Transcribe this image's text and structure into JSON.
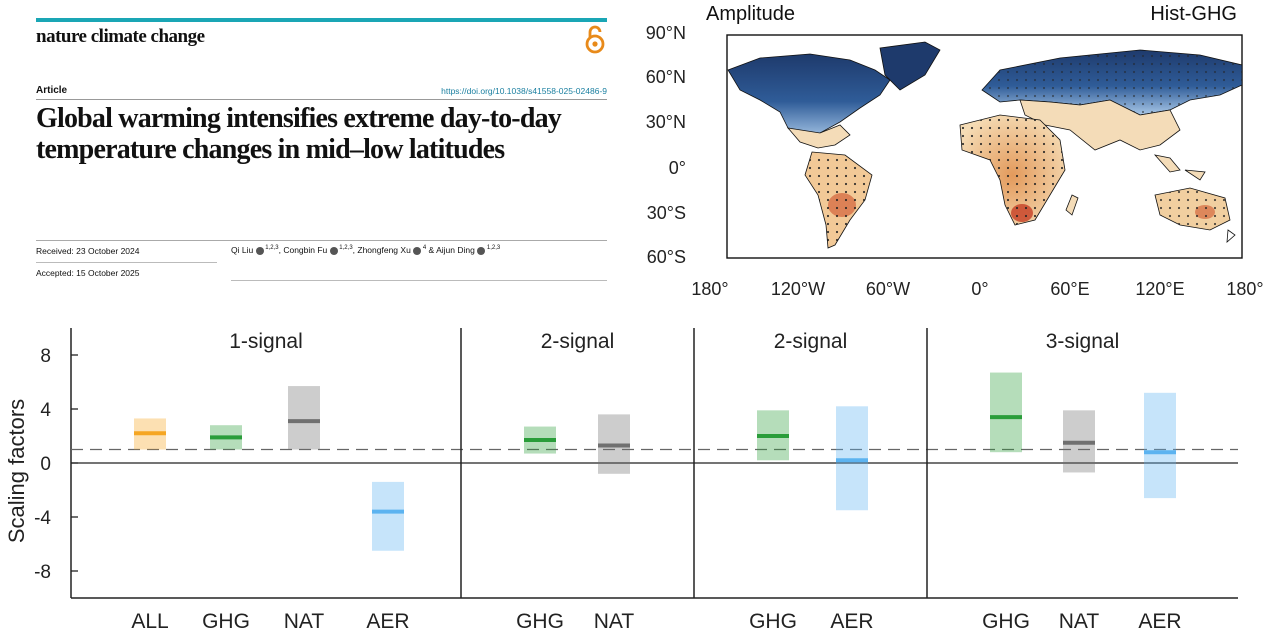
{
  "article": {
    "journal": "nature climate change",
    "type": "Article",
    "doi": "https://doi.org/10.1038/s41558-025-02486-9",
    "title": "Global warming intensifies extreme day-to-day temperature changes in mid–low latitudes",
    "received": "Received: 23 October 2024",
    "accepted": "Accepted: 15 October 2025",
    "authors": [
      {
        "name": "Qi Liu",
        "aff": "1,2,3",
        "sep": ", "
      },
      {
        "name": "Congbin Fu",
        "aff": "1,2,3",
        "sep": ", "
      },
      {
        "name": "Zhongfeng Xu",
        "aff": "4",
        "sep": " & "
      },
      {
        "name": "Aijun Ding",
        "aff": "1,2,3",
        "sep": ""
      }
    ],
    "accent_color": "#1aa6b5",
    "oa_icon": "open-access-lock-icon",
    "oa_color": "#e88a1a"
  },
  "map": {
    "label_left": "Amplitude",
    "label_right": "Hist-GHG",
    "lat_ticks": [
      "90°N",
      "60°N",
      "30°N",
      "0°",
      "30°S",
      "60°S"
    ],
    "lon_ticks": [
      "180°",
      "120°W",
      "60°W",
      "0°",
      "60°E",
      "120°E",
      "180°"
    ],
    "colors": {
      "high_neg": "#1f3b6e",
      "mid_neg": "#7fa9d6",
      "low": "#f6e3c4",
      "pos": "#e8a56a",
      "high_pos": "#c8472c"
    }
  },
  "chart_data": {
    "type": "bar",
    "ylabel": "Scaling factors",
    "ylim": [
      -10,
      10
    ],
    "yticks": [
      8,
      4,
      0,
      -4,
      -8
    ],
    "ytick_labels": [
      "8",
      "4",
      "0",
      "-4",
      "-8"
    ],
    "reference_line": 1,
    "panels": [
      {
        "title": "1-signal",
        "bars": [
          {
            "label": "ALL",
            "best": 2.2,
            "low": 1.0,
            "high": 3.3,
            "color": "#f5a623"
          },
          {
            "label": "GHG",
            "best": 1.9,
            "low": 1.0,
            "high": 2.8,
            "color": "#2a9d3a"
          },
          {
            "label": "NAT",
            "best": 3.1,
            "low": 1.0,
            "high": 5.7,
            "color": "#707070"
          },
          {
            "label": "AER",
            "best": -3.6,
            "low": -6.5,
            "high": -1.4,
            "color": "#5cb3f0"
          }
        ]
      },
      {
        "title": "2-signal",
        "bars": [
          {
            "label": "GHG",
            "best": 1.7,
            "low": 0.7,
            "high": 2.7,
            "color": "#2a9d3a"
          },
          {
            "label": "NAT",
            "best": 1.3,
            "low": -0.8,
            "high": 3.6,
            "color": "#707070"
          }
        ]
      },
      {
        "title": "2-signal",
        "bars": [
          {
            "label": "GHG",
            "best": 2.0,
            "low": 0.2,
            "high": 3.9,
            "color": "#2a9d3a"
          },
          {
            "label": "AER",
            "best": 0.2,
            "low": -3.5,
            "high": 4.2,
            "color": "#5cb3f0"
          }
        ]
      },
      {
        "title": "3-signal",
        "bars": [
          {
            "label": "GHG",
            "best": 3.4,
            "low": 0.8,
            "high": 6.7,
            "color": "#2a9d3a"
          },
          {
            "label": "NAT",
            "best": 1.5,
            "low": -0.7,
            "high": 3.9,
            "color": "#707070"
          },
          {
            "label": "AER",
            "best": 0.8,
            "low": -2.6,
            "high": 5.2,
            "color": "#5cb3f0"
          }
        ]
      }
    ]
  }
}
